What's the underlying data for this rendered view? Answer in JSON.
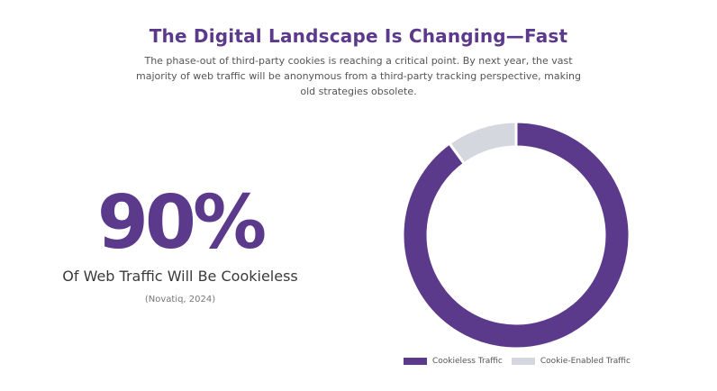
{
  "header": {
    "title": "The Digital Landscape Is Changing—Fast",
    "subtitle": "The phase-out of third-party cookies is reaching a critical point. By next year, the vast majority of web traffic will be anonymous from a third-party tracking perspective, making old strategies obsolete."
  },
  "stat": {
    "value": "90%",
    "label": "Of Web Traffic Will Be Cookieless",
    "citation": "(Novatiq, 2024)"
  },
  "colors": {
    "accent": "#5b3a8c",
    "secondary": "#d5d7de"
  },
  "chart_data": {
    "type": "pie",
    "variant": "donut",
    "title": "",
    "categories": [
      "Cookieless Traffic",
      "Cookie-Enabled Traffic"
    ],
    "values": [
      90,
      10
    ],
    "unit": "%",
    "colors": [
      "#5b3a8c",
      "#d5d7de"
    ],
    "legend_position": "bottom-right",
    "start_angle": "top",
    "direction": "clockwise"
  }
}
